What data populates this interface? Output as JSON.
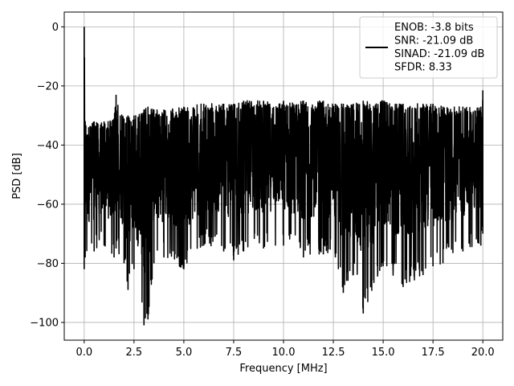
{
  "chart_data": {
    "type": "line",
    "title": "",
    "xlabel": "Frequency [MHz]",
    "ylabel": "PSD [dB]",
    "xlim": [
      -1.0,
      21.0
    ],
    "ylim": [
      -106,
      5
    ],
    "x_ticks": [
      0.0,
      2.5,
      5.0,
      7.5,
      10.0,
      12.5,
      15.0,
      17.5,
      20.0
    ],
    "x_tick_labels": [
      "0.0",
      "2.5",
      "5.0",
      "7.5",
      "10.0",
      "12.5",
      "15.0",
      "17.5",
      "20.0"
    ],
    "y_ticks": [
      0,
      -20,
      -40,
      -60,
      -80,
      -100
    ],
    "y_tick_labels": [
      "0",
      "−20",
      "−40",
      "−60",
      "−80",
      "−100"
    ],
    "grid": true,
    "legend_position": "top-right",
    "line_color": "#000000",
    "series": [
      {
        "name": "ENOB: -3.8 bits\nSNR: -21.09 dB\nSINAD: -21.09 dB\nSFDR: 8.33",
        "x": [
          0.0,
          0.05,
          0.5,
          1.0,
          1.5,
          1.6,
          2.0,
          2.2,
          2.5,
          3.0,
          3.2,
          3.5,
          4.0,
          5.0,
          6.0,
          7.0,
          7.5,
          8.0,
          9.0,
          10.0,
          11.0,
          12.0,
          12.6,
          13.0,
          13.5,
          14.0,
          15.0,
          16.0,
          17.0,
          17.5,
          18.0,
          19.0,
          19.9,
          20.0
        ],
        "upper_envelope_db": [
          0.0,
          -32,
          -32,
          -32,
          -31,
          -23,
          -31,
          -30,
          -30,
          -28,
          -27,
          -28,
          -28,
          -27,
          -26,
          -26,
          -26,
          -25,
          -25,
          -25,
          -25,
          -25,
          -26,
          -26,
          -26,
          -25,
          -25,
          -26,
          -26,
          -26,
          -27,
          -27,
          -27,
          -21.5
        ],
        "lower_envelope_db": [
          -82,
          -78,
          -76,
          -74,
          -78,
          -75,
          -80,
          -89,
          -82,
          -101,
          -99,
          -80,
          -78,
          -82,
          -74,
          -76,
          -79,
          -76,
          -75,
          -74,
          -78,
          -77,
          -78,
          -90,
          -84,
          -97,
          -81,
          -88,
          -84,
          -81,
          -80,
          -76,
          -74,
          -70
        ]
      }
    ]
  }
}
